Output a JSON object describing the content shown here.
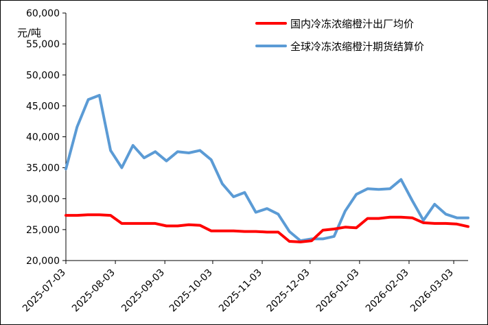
{
  "chart_data": {
    "type": "line",
    "title": "",
    "xlabel": "",
    "ylabel": "元/吨",
    "ylim": [
      20000,
      60000
    ],
    "yticks": [
      20000,
      25000,
      30000,
      35000,
      40000,
      45000,
      50000,
      55000,
      60000
    ],
    "ytick_labels": [
      "20,000",
      "25,000",
      "30,000",
      "35,000",
      "40,000",
      "45,000",
      "50,000",
      "55,000",
      "60,000"
    ],
    "xlim": [
      "2025-07-03",
      "2026-03-12"
    ],
    "xtick_labels": [
      "2025-07-03",
      "2025-08-03",
      "2025-09-03",
      "2025-10-03",
      "2025-11-03",
      "2025-12-03",
      "2026-01-03",
      "2026-02-03",
      "2026-03-03"
    ],
    "grid": false,
    "legend_position": "top-right",
    "series": [
      {
        "name": "国内冷冻浓缩橙汁出厂均价",
        "color": "#ff0000",
        "x": [
          "2025-07-03",
          "2025-07-10",
          "2025-07-17",
          "2025-07-24",
          "2025-07-31",
          "2025-08-07",
          "2025-08-14",
          "2025-08-21",
          "2025-08-28",
          "2025-09-04",
          "2025-09-11",
          "2025-09-18",
          "2025-09-25",
          "2025-10-02",
          "2025-10-09",
          "2025-10-16",
          "2025-10-23",
          "2025-10-30",
          "2025-11-06",
          "2025-11-13",
          "2025-11-20",
          "2025-11-27",
          "2025-12-04",
          "2025-12-11",
          "2025-12-18",
          "2025-12-25",
          "2026-01-01",
          "2026-01-08",
          "2026-01-15",
          "2026-01-22",
          "2026-01-29",
          "2026-02-05",
          "2026-02-12",
          "2026-02-19",
          "2026-02-26",
          "2026-03-05",
          "2026-03-12"
        ],
        "values": [
          27300,
          27300,
          27400,
          27400,
          27300,
          26000,
          26000,
          26000,
          26000,
          25600,
          25600,
          25800,
          25700,
          24800,
          24800,
          24800,
          24700,
          24700,
          24600,
          24600,
          23100,
          23000,
          23200,
          24900,
          25100,
          25400,
          25300,
          26800,
          26800,
          27000,
          27000,
          26900,
          26100,
          26000,
          26000,
          25900,
          25500
        ]
      },
      {
        "name": "全球冷冻浓缩橙汁期货结算价",
        "color": "#5b9bd5",
        "x": [
          "2025-07-03",
          "2025-07-10",
          "2025-07-17",
          "2025-07-24",
          "2025-07-31",
          "2025-08-07",
          "2025-08-14",
          "2025-08-21",
          "2025-08-28",
          "2025-09-04",
          "2025-09-11",
          "2025-09-18",
          "2025-09-25",
          "2025-10-02",
          "2025-10-09",
          "2025-10-16",
          "2025-10-23",
          "2025-10-30",
          "2025-11-06",
          "2025-11-13",
          "2025-11-20",
          "2025-11-27",
          "2025-12-04",
          "2025-12-11",
          "2025-12-18",
          "2025-12-25",
          "2026-01-01",
          "2026-01-08",
          "2026-01-15",
          "2026-01-22",
          "2026-01-29",
          "2026-02-05",
          "2026-02-12",
          "2026-02-19",
          "2026-02-26",
          "2026-03-05",
          "2026-03-12"
        ],
        "values": [
          34800,
          41600,
          46000,
          46700,
          37800,
          35000,
          38600,
          36600,
          37600,
          36100,
          37600,
          37400,
          37800,
          36300,
          32400,
          30300,
          31000,
          27800,
          28400,
          27500,
          24700,
          23200,
          23500,
          23500,
          23900,
          28000,
          30700,
          31600,
          31500,
          31600,
          33100,
          29700,
          26500,
          29100,
          27500,
          26900,
          26900
        ]
      }
    ]
  }
}
